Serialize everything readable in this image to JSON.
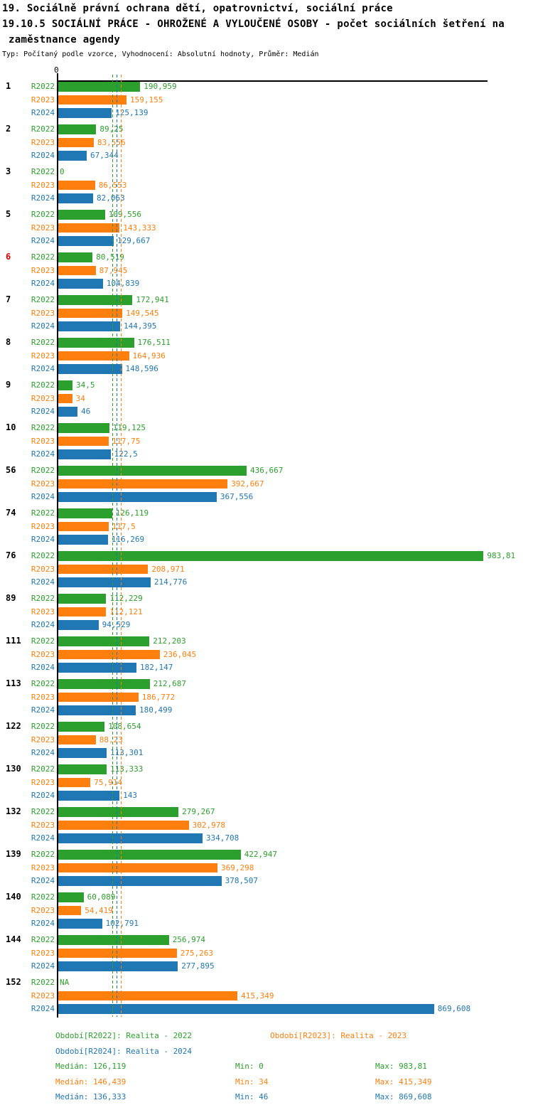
{
  "header": {
    "title_line1": "19. Sociálně právní ochrana dětí, opatrovnictví, sociální práce",
    "title_line2": "19.10.5 SOCIÁLNÍ PRÁCE - OHROŽENÉ A VYLOUČENÉ OSOBY - počet sociálních šetření na",
    "title_line3": "zaměstnance agendy",
    "subtitle": "Typ: Počítaný podle vzorce, Vyhodnocení: Absolutní hodnoty, Průměr: Medián"
  },
  "colors": {
    "r2022": "#2ca02c",
    "r2023": "#ff7f0e",
    "r2024": "#1f77b4",
    "highlight_group": "#e00000",
    "axis": "#000000"
  },
  "chart_data": {
    "type": "bar",
    "orientation": "horizontal",
    "x_axis": {
      "zero_label": "0",
      "xlim": [
        0,
        993
      ]
    },
    "series": [
      {
        "key": "R2022",
        "color": "#2ca02c",
        "median": 126.119,
        "legend": "Období[R2022]: Realita - 2022",
        "median_label": "Medián: 126,119",
        "min_label": "Min: 0",
        "max_label": "Max: 983,81"
      },
      {
        "key": "R2023",
        "color": "#ff7f0e",
        "median": 146.439,
        "legend": "Období[R2023]: Realita - 2023",
        "median_label": "Medián: 146,439",
        "min_label": "Min: 34",
        "max_label": "Max: 415,349"
      },
      {
        "key": "R2024",
        "color": "#1f77b4",
        "median": 136.333,
        "legend": "Období[R2024]: Realita - 2024",
        "median_label": "Medián: 136,333",
        "min_label": "Min: 46",
        "max_label": "Max: 869,608"
      }
    ],
    "groups": [
      {
        "label": "1",
        "highlight": false,
        "values": [
          "190,959",
          "159,155",
          "125,139"
        ]
      },
      {
        "label": "2",
        "highlight": false,
        "values": [
          "89,25",
          "83,556",
          "67,344"
        ]
      },
      {
        "label": "3",
        "highlight": false,
        "values": [
          "0",
          "86,553",
          "82,063"
        ]
      },
      {
        "label": "5",
        "highlight": false,
        "values": [
          "109,556",
          "143,333",
          "129,667"
        ]
      },
      {
        "label": "6",
        "highlight": true,
        "values": [
          "80,519",
          "87,945",
          "104,839"
        ]
      },
      {
        "label": "7",
        "highlight": false,
        "values": [
          "172,941",
          "149,545",
          "144,395"
        ]
      },
      {
        "label": "8",
        "highlight": false,
        "values": [
          "176,511",
          "164,936",
          "148,596"
        ]
      },
      {
        "label": "9",
        "highlight": false,
        "values": [
          "34,5",
          "34",
          "46"
        ]
      },
      {
        "label": "10",
        "highlight": false,
        "values": [
          "119,125",
          "117,75",
          "122,5"
        ]
      },
      {
        "label": "56",
        "highlight": false,
        "values": [
          "436,667",
          "392,667",
          "367,556"
        ]
      },
      {
        "label": "74",
        "highlight": false,
        "values": [
          "126,119",
          "117,5",
          "116,269"
        ]
      },
      {
        "label": "76",
        "highlight": false,
        "values": [
          "983,81",
          "208,971",
          "214,776"
        ]
      },
      {
        "label": "89",
        "highlight": false,
        "values": [
          "112,229",
          "112,121",
          "94,529"
        ]
      },
      {
        "label": "111",
        "highlight": false,
        "values": [
          "212,203",
          "236,045",
          "182,147"
        ]
      },
      {
        "label": "113",
        "highlight": false,
        "values": [
          "212,687",
          "186,772",
          "180,499"
        ]
      },
      {
        "label": "122",
        "highlight": false,
        "values": [
          "108,654",
          "88,23",
          "113,301"
        ]
      },
      {
        "label": "130",
        "highlight": false,
        "values": [
          "113,333",
          "75,914",
          "143"
        ]
      },
      {
        "label": "132",
        "highlight": false,
        "values": [
          "279,267",
          "302,978",
          "334,708"
        ]
      },
      {
        "label": "139",
        "highlight": false,
        "values": [
          "422,947",
          "369,298",
          "378,507"
        ]
      },
      {
        "label": "140",
        "highlight": false,
        "values": [
          "60,089",
          "54,419",
          "102,791"
        ]
      },
      {
        "label": "144",
        "highlight": false,
        "values": [
          "256,974",
          "275,263",
          "277,895"
        ]
      },
      {
        "label": "152",
        "highlight": false,
        "values": [
          "NA",
          "415,349",
          "869,608"
        ]
      }
    ]
  }
}
